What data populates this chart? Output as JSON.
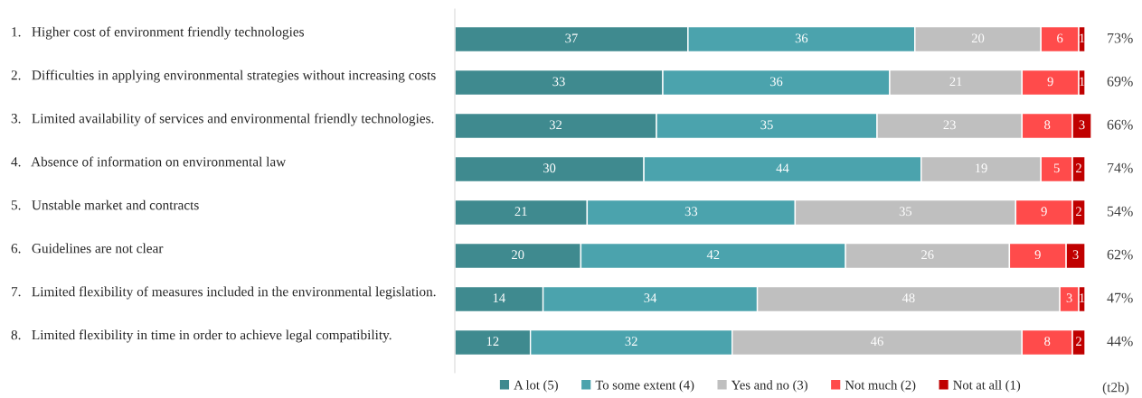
{
  "chart_data": {
    "type": "bar",
    "orientation": "horizontal",
    "stacked": true,
    "data_labels": true,
    "legend": "bottom",
    "grid": false,
    "xlim": [
      0,
      101
    ],
    "categories": [
      "1.   Higher cost of environment friendly technologies",
      "2.   Difficulties in applying environmental strategies without increasing costs",
      "3.   Limited availability of services and environmental friendly technologies.",
      "4.   Absence of information on environmental law",
      "5.   Unstable market and contracts",
      "6.   Guidelines are not clear",
      "7.   Limited flexibility of measures included in the environmental legislation.",
      "8.   Limited flexibility in time in order to achieve legal compatibility."
    ],
    "series": [
      {
        "name": "A lot (5)",
        "color": "#3f8a8f",
        "values": [
          37,
          33,
          32,
          30,
          21,
          20,
          14,
          12
        ]
      },
      {
        "name": "To some extent (4)",
        "color": "#4ba3ad",
        "values": [
          36,
          36,
          35,
          44,
          33,
          42,
          34,
          32
        ]
      },
      {
        "name": "Yes and no (3)",
        "color": "#bfbfbf",
        "values": [
          20,
          21,
          23,
          19,
          35,
          26,
          48,
          46
        ]
      },
      {
        "name": "Not much (2)",
        "color": "#ff4b4b",
        "values": [
          6,
          9,
          8,
          5,
          9,
          9,
          3,
          8
        ]
      },
      {
        "name": "Not at all (1)",
        "color": "#c00000",
        "values": [
          1,
          1,
          3,
          2,
          2,
          3,
          1,
          2
        ]
      }
    ],
    "annotations": [
      "73%",
      "69%",
      "66%",
      "74%",
      "54%",
      "62%",
      "47%",
      "44%",
      "(t2b)"
    ]
  }
}
